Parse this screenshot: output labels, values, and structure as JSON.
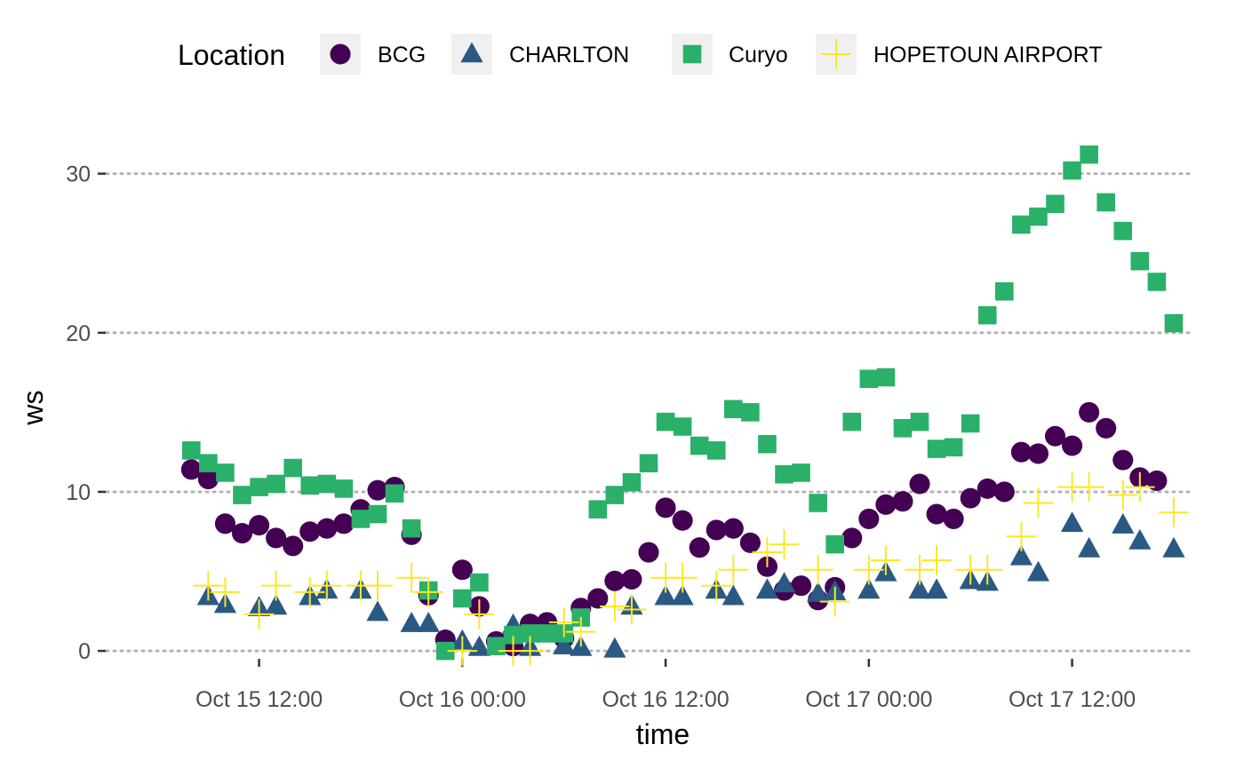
{
  "chart_data": {
    "type": "scatter",
    "title": "",
    "xlabel": "time",
    "ylabel": "ws",
    "ylim": [
      -1.5,
      34.5
    ],
    "y_ticks": [
      0,
      10,
      20,
      30
    ],
    "xlim": [
      "2024-10-15 03:00",
      "2024-10-17 19:00"
    ],
    "x_ticks": [
      {
        "x": "2024-10-15 12:00",
        "label": "Oct 15 12:00"
      },
      {
        "x": "2024-10-16 00:00",
        "label": "Oct 16 00:00"
      },
      {
        "x": "2024-10-16 12:00",
        "label": "Oct 16 12:00"
      },
      {
        "x": "2024-10-17 00:00",
        "label": "Oct 17 00:00"
      },
      {
        "x": "2024-10-17 12:00",
        "label": "Oct 17 12:00"
      }
    ],
    "grid": "horizontal dotted",
    "legend": {
      "title": "Location",
      "position": "top"
    },
    "series": [
      {
        "name": "BCG",
        "marker": "circle",
        "color": "#440154",
        "points": [
          [
            "2024-10-15 08:00",
            11.4
          ],
          [
            "2024-10-15 09:00",
            10.8
          ],
          [
            "2024-10-15 10:00",
            8.0
          ],
          [
            "2024-10-15 11:00",
            7.4
          ],
          [
            "2024-10-15 12:00",
            7.9
          ],
          [
            "2024-10-15 13:00",
            7.1
          ],
          [
            "2024-10-15 14:00",
            6.6
          ],
          [
            "2024-10-15 15:00",
            7.5
          ],
          [
            "2024-10-15 16:00",
            7.7
          ],
          [
            "2024-10-15 17:00",
            8.0
          ],
          [
            "2024-10-15 18:00",
            8.9
          ],
          [
            "2024-10-15 19:00",
            10.1
          ],
          [
            "2024-10-15 20:00",
            10.3
          ],
          [
            "2024-10-15 21:00",
            7.3
          ],
          [
            "2024-10-15 22:00",
            3.5
          ],
          [
            "2024-10-15 23:00",
            0.7
          ],
          [
            "2024-10-16 00:00",
            5.1
          ],
          [
            "2024-10-16 01:00",
            2.8
          ],
          [
            "2024-10-16 02:00",
            0.6
          ],
          [
            "2024-10-16 03:00",
            0.3
          ],
          [
            "2024-10-16 04:00",
            1.7
          ],
          [
            "2024-10-16 05:00",
            1.8
          ],
          [
            "2024-10-16 06:00",
            0.8
          ],
          [
            "2024-10-16 07:00",
            2.7
          ],
          [
            "2024-10-16 08:00",
            3.3
          ],
          [
            "2024-10-16 09:00",
            4.4
          ],
          [
            "2024-10-16 10:00",
            4.5
          ],
          [
            "2024-10-16 11:00",
            6.2
          ],
          [
            "2024-10-16 12:00",
            9.0
          ],
          [
            "2024-10-16 13:00",
            8.2
          ],
          [
            "2024-10-16 14:00",
            6.5
          ],
          [
            "2024-10-16 15:00",
            7.6
          ],
          [
            "2024-10-16 16:00",
            7.7
          ],
          [
            "2024-10-16 17:00",
            6.8
          ],
          [
            "2024-10-16 18:00",
            5.3
          ],
          [
            "2024-10-16 19:00",
            3.8
          ],
          [
            "2024-10-16 20:00",
            4.1
          ],
          [
            "2024-10-16 21:00",
            3.2
          ],
          [
            "2024-10-16 22:00",
            4.0
          ],
          [
            "2024-10-16 23:00",
            7.1
          ],
          [
            "2024-10-17 00:00",
            8.3
          ],
          [
            "2024-10-17 01:00",
            9.2
          ],
          [
            "2024-10-17 02:00",
            9.4
          ],
          [
            "2024-10-17 03:00",
            10.5
          ],
          [
            "2024-10-17 04:00",
            8.6
          ],
          [
            "2024-10-17 05:00",
            8.3
          ],
          [
            "2024-10-17 06:00",
            9.6
          ],
          [
            "2024-10-17 07:00",
            10.2
          ],
          [
            "2024-10-17 08:00",
            10.0
          ],
          [
            "2024-10-17 09:00",
            12.5
          ],
          [
            "2024-10-17 10:00",
            12.4
          ],
          [
            "2024-10-17 11:00",
            13.5
          ],
          [
            "2024-10-17 12:00",
            12.9
          ],
          [
            "2024-10-17 13:00",
            15.0
          ],
          [
            "2024-10-17 14:00",
            14.0
          ],
          [
            "2024-10-17 15:00",
            12.0
          ],
          [
            "2024-10-17 16:00",
            10.9
          ],
          [
            "2024-10-17 17:00",
            10.7
          ]
        ]
      },
      {
        "name": "CHARLTON",
        "marker": "triangle",
        "color": "#2a5983",
        "points": [
          [
            "2024-10-15 09:00",
            3.4
          ],
          [
            "2024-10-15 10:00",
            2.9
          ],
          [
            "2024-10-15 12:00",
            2.7
          ],
          [
            "2024-10-15 13:00",
            2.8
          ],
          [
            "2024-10-15 15:00",
            3.4
          ],
          [
            "2024-10-15 16:00",
            3.8
          ],
          [
            "2024-10-15 18:00",
            3.8
          ],
          [
            "2024-10-15 19:00",
            2.4
          ],
          [
            "2024-10-15 21:00",
            1.7
          ],
          [
            "2024-10-15 22:00",
            1.7
          ],
          [
            "2024-10-16 00:00",
            0.6
          ],
          [
            "2024-10-16 01:00",
            0.2
          ],
          [
            "2024-10-16 03:00",
            1.6
          ],
          [
            "2024-10-16 04:00",
            0.2
          ],
          [
            "2024-10-16 06:00",
            0.3
          ],
          [
            "2024-10-16 07:00",
            0.2
          ],
          [
            "2024-10-16 09:00",
            0.1
          ],
          [
            "2024-10-16 10:00",
            2.8
          ],
          [
            "2024-10-16 12:00",
            3.4
          ],
          [
            "2024-10-16 13:00",
            3.4
          ],
          [
            "2024-10-16 15:00",
            3.8
          ],
          [
            "2024-10-16 16:00",
            3.4
          ],
          [
            "2024-10-16 18:00",
            3.8
          ],
          [
            "2024-10-16 19:00",
            4.2
          ],
          [
            "2024-10-16 21:00",
            3.6
          ],
          [
            "2024-10-16 22:00",
            3.7
          ],
          [
            "2024-10-17 00:00",
            3.8
          ],
          [
            "2024-10-17 01:00",
            4.9
          ],
          [
            "2024-10-17 03:00",
            3.8
          ],
          [
            "2024-10-17 04:00",
            3.8
          ],
          [
            "2024-10-17 06:00",
            4.4
          ],
          [
            "2024-10-17 07:00",
            4.3
          ],
          [
            "2024-10-17 09:00",
            5.9
          ],
          [
            "2024-10-17 10:00",
            4.9
          ],
          [
            "2024-10-17 12:00",
            8.0
          ],
          [
            "2024-10-17 13:00",
            6.4
          ],
          [
            "2024-10-17 15:00",
            7.9
          ],
          [
            "2024-10-17 16:00",
            6.9
          ],
          [
            "2024-10-17 18:00",
            6.4
          ]
        ]
      },
      {
        "name": "Curyo",
        "marker": "square",
        "color": "#2ab069",
        "points": [
          [
            "2024-10-15 08:00",
            12.6
          ],
          [
            "2024-10-15 09:00",
            11.8
          ],
          [
            "2024-10-15 10:00",
            11.2
          ],
          [
            "2024-10-15 11:00",
            9.8
          ],
          [
            "2024-10-15 12:00",
            10.3
          ],
          [
            "2024-10-15 13:00",
            10.5
          ],
          [
            "2024-10-15 14:00",
            11.5
          ],
          [
            "2024-10-15 15:00",
            10.4
          ],
          [
            "2024-10-15 16:00",
            10.5
          ],
          [
            "2024-10-15 17:00",
            10.2
          ],
          [
            "2024-10-15 18:00",
            8.3
          ],
          [
            "2024-10-15 19:00",
            8.6
          ],
          [
            "2024-10-15 20:00",
            9.9
          ],
          [
            "2024-10-15 21:00",
            7.7
          ],
          [
            "2024-10-15 22:00",
            3.8
          ],
          [
            "2024-10-15 23:00",
            0.0
          ],
          [
            "2024-10-16 00:00",
            3.3
          ],
          [
            "2024-10-16 01:00",
            4.3
          ],
          [
            "2024-10-16 02:00",
            0.3
          ],
          [
            "2024-10-16 03:00",
            1.0
          ],
          [
            "2024-10-16 04:00",
            1.1
          ],
          [
            "2024-10-16 05:00",
            1.1
          ],
          [
            "2024-10-16 06:00",
            1.1
          ],
          [
            "2024-10-16 07:00",
            2.1
          ],
          [
            "2024-10-16 08:00",
            8.9
          ],
          [
            "2024-10-16 09:00",
            9.8
          ],
          [
            "2024-10-16 10:00",
            10.6
          ],
          [
            "2024-10-16 11:00",
            11.8
          ],
          [
            "2024-10-16 12:00",
            14.4
          ],
          [
            "2024-10-16 13:00",
            14.1
          ],
          [
            "2024-10-16 14:00",
            12.9
          ],
          [
            "2024-10-16 15:00",
            12.6
          ],
          [
            "2024-10-16 16:00",
            15.2
          ],
          [
            "2024-10-16 17:00",
            15.0
          ],
          [
            "2024-10-16 18:00",
            13.0
          ],
          [
            "2024-10-16 19:00",
            11.1
          ],
          [
            "2024-10-16 20:00",
            11.2
          ],
          [
            "2024-10-16 21:00",
            9.3
          ],
          [
            "2024-10-16 22:00",
            6.7
          ],
          [
            "2024-10-16 23:00",
            14.4
          ],
          [
            "2024-10-17 00:00",
            17.1
          ],
          [
            "2024-10-17 01:00",
            17.2
          ],
          [
            "2024-10-17 02:00",
            14.0
          ],
          [
            "2024-10-17 03:00",
            14.4
          ],
          [
            "2024-10-17 04:00",
            12.7
          ],
          [
            "2024-10-17 05:00",
            12.8
          ],
          [
            "2024-10-17 06:00",
            14.3
          ],
          [
            "2024-10-17 07:00",
            21.1
          ],
          [
            "2024-10-17 08:00",
            22.6
          ],
          [
            "2024-10-17 09:00",
            26.8
          ],
          [
            "2024-10-17 10:00",
            27.3
          ],
          [
            "2024-10-17 11:00",
            28.1
          ],
          [
            "2024-10-17 12:00",
            30.2
          ],
          [
            "2024-10-17 13:00",
            31.2
          ],
          [
            "2024-10-17 14:00",
            28.2
          ],
          [
            "2024-10-17 15:00",
            26.4
          ],
          [
            "2024-10-17 16:00",
            24.5
          ],
          [
            "2024-10-17 17:00",
            23.2
          ],
          [
            "2024-10-17 18:00",
            20.6
          ]
        ]
      },
      {
        "name": "HOPETOUN AIRPORT",
        "marker": "plus",
        "color": "#fde725",
        "points": [
          [
            "2024-10-15 09:00",
            4.1
          ],
          [
            "2024-10-15 10:00",
            3.7
          ],
          [
            "2024-10-15 12:00",
            2.3
          ],
          [
            "2024-10-15 13:00",
            4.1
          ],
          [
            "2024-10-15 15:00",
            3.7
          ],
          [
            "2024-10-15 16:00",
            4.1
          ],
          [
            "2024-10-15 18:00",
            4.1
          ],
          [
            "2024-10-15 19:00",
            4.1
          ],
          [
            "2024-10-15 21:00",
            4.6
          ],
          [
            "2024-10-15 22:00",
            3.7
          ],
          [
            "2024-10-16 00:00",
            0.0
          ],
          [
            "2024-10-16 01:00",
            2.3
          ],
          [
            "2024-10-16 03:00",
            0.0
          ],
          [
            "2024-10-16 04:00",
            0.0
          ],
          [
            "2024-10-16 06:00",
            1.8
          ],
          [
            "2024-10-16 07:00",
            1.2
          ],
          [
            "2024-10-16 09:00",
            2.8
          ],
          [
            "2024-10-16 10:00",
            2.6
          ],
          [
            "2024-10-16 12:00",
            4.6
          ],
          [
            "2024-10-16 13:00",
            4.6
          ],
          [
            "2024-10-16 15:00",
            4.1
          ],
          [
            "2024-10-16 16:00",
            5.1
          ],
          [
            "2024-10-16 18:00",
            6.2
          ],
          [
            "2024-10-16 19:00",
            6.7
          ],
          [
            "2024-10-16 21:00",
            5.1
          ],
          [
            "2024-10-16 22:00",
            3.1
          ],
          [
            "2024-10-17 00:00",
            5.1
          ],
          [
            "2024-10-17 01:00",
            5.7
          ],
          [
            "2024-10-17 03:00",
            5.1
          ],
          [
            "2024-10-17 04:00",
            5.7
          ],
          [
            "2024-10-17 06:00",
            5.1
          ],
          [
            "2024-10-17 07:00",
            5.1
          ],
          [
            "2024-10-17 09:00",
            7.2
          ],
          [
            "2024-10-17 10:00",
            9.3
          ],
          [
            "2024-10-17 12:00",
            10.3
          ],
          [
            "2024-10-17 13:00",
            10.3
          ],
          [
            "2024-10-17 15:00",
            9.8
          ],
          [
            "2024-10-17 16:00",
            10.3
          ],
          [
            "2024-10-17 18:00",
            8.7
          ]
        ]
      }
    ]
  }
}
